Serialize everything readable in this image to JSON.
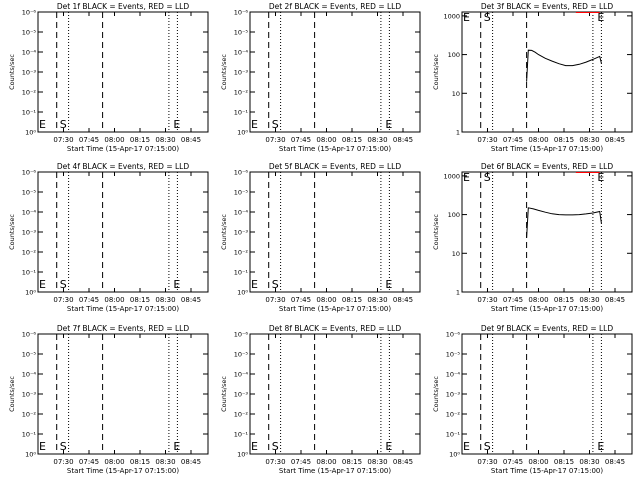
{
  "chart_data": [
    {
      "type": "line",
      "title": "Det 1f BLACK = Events, RED = LLD",
      "xlabel": "Start Time (15-Apr-17 07:15:00)",
      "ylabel": "Counts/sec",
      "x_tick_labels": [
        "07:30",
        "07:45",
        "08:00",
        "08:15",
        "08:30",
        "08:45"
      ],
      "y_scale": "log",
      "y_tick_labels": [
        "10⁰",
        "10⁻¹",
        "10⁻²",
        "10⁻³",
        "10⁻⁴",
        "10⁻⁵",
        "10⁻⁶"
      ],
      "markers": {
        "start": "S",
        "end": "E"
      },
      "series": []
    },
    {
      "type": "line",
      "title": "Det 2f BLACK = Events, RED = LLD",
      "xlabel": "Start Time (15-Apr-17 07:15:00)",
      "ylabel": "Counts/sec",
      "x_tick_labels": [
        "07:30",
        "07:45",
        "08:00",
        "08:15",
        "08:30",
        "08:45"
      ],
      "y_scale": "log",
      "y_tick_labels": [
        "10⁰",
        "10⁻¹",
        "10⁻²",
        "10⁻³",
        "10⁻⁴",
        "10⁻⁵",
        "10⁻⁶"
      ],
      "markers": {
        "start": "S",
        "end": "E"
      },
      "series": []
    },
    {
      "type": "line",
      "title": "Det 3f BLACK = Events, RED = LLD",
      "xlabel": "Start Time (15-Apr-17 07:15:00)",
      "ylabel": "Counts/sec",
      "x_tick_labels": [
        "07:30",
        "07:45",
        "08:00",
        "08:15",
        "08:30",
        "08:45"
      ],
      "y_scale": "log",
      "y_tick_labels": [
        "1",
        "10",
        "100",
        "1000"
      ],
      "markers": {
        "start": "S",
        "end": "E"
      },
      "series": [
        {
          "color": "#000000",
          "x": [
            "07:53",
            "07:54",
            "07:56",
            "07:58",
            "08:00",
            "08:04",
            "08:08",
            "08:12",
            "08:16",
            "08:20",
            "08:24",
            "08:28",
            "08:32",
            "08:36",
            "08:37"
          ],
          "values": [
            20,
            130,
            128,
            115,
            100,
            80,
            68,
            58,
            52,
            52,
            56,
            64,
            75,
            90,
            60
          ]
        }
      ]
    },
    {
      "type": "line",
      "title": "Det 4f BLACK = Events, RED = LLD",
      "xlabel": "Start Time (15-Apr-17 07:15:00)",
      "ylabel": "Counts/sec",
      "x_tick_labels": [
        "07:30",
        "07:45",
        "08:00",
        "08:15",
        "08:30",
        "08:45"
      ],
      "y_scale": "log",
      "y_tick_labels": [
        "10⁰",
        "10⁻¹",
        "10⁻²",
        "10⁻³",
        "10⁻⁴",
        "10⁻⁵",
        "10⁻⁶"
      ],
      "markers": {
        "start": "S",
        "end": "E"
      },
      "series": []
    },
    {
      "type": "line",
      "title": "Det 5f BLACK = Events, RED = LLD",
      "xlabel": "Start Time (15-Apr-17 07:15:00)",
      "ylabel": "Counts/sec",
      "x_tick_labels": [
        "07:30",
        "07:45",
        "08:00",
        "08:15",
        "08:30",
        "08:45"
      ],
      "y_scale": "log",
      "y_tick_labels": [
        "10⁰",
        "10⁻¹",
        "10⁻²",
        "10⁻³",
        "10⁻⁴",
        "10⁻⁵",
        "10⁻⁶"
      ],
      "markers": {
        "start": "S",
        "end": "E"
      },
      "series": []
    },
    {
      "type": "line",
      "title": "Det 6f BLACK = Events, RED = LLD",
      "xlabel": "Start Time (15-Apr-17 07:15:00)",
      "ylabel": "Counts/sec",
      "x_tick_labels": [
        "07:30",
        "07:45",
        "08:00",
        "08:15",
        "08:30",
        "08:45"
      ],
      "y_scale": "log",
      "y_tick_labels": [
        "1",
        "10",
        "100",
        "1000"
      ],
      "markers": {
        "start": "S",
        "end": "E"
      },
      "series": [
        {
          "color": "#000000",
          "x": [
            "07:53",
            "07:54",
            "07:57",
            "08:00",
            "08:04",
            "08:08",
            "08:12",
            "08:16",
            "08:20",
            "08:24",
            "08:28",
            "08:32",
            "08:36",
            "08:37"
          ],
          "values": [
            25,
            150,
            140,
            128,
            115,
            105,
            100,
            98,
            98,
            100,
            104,
            110,
            120,
            60
          ]
        }
      ]
    },
    {
      "type": "line",
      "title": "Det 7f BLACK = Events, RED = LLD",
      "xlabel": "Start Time (15-Apr-17 07:15:00)",
      "ylabel": "Counts/sec",
      "x_tick_labels": [
        "07:30",
        "07:45",
        "08:00",
        "08:15",
        "08:30",
        "08:45"
      ],
      "y_scale": "log",
      "y_tick_labels": [
        "10⁰",
        "10⁻¹",
        "10⁻²",
        "10⁻³",
        "10⁻⁴",
        "10⁻⁵",
        "10⁻⁶"
      ],
      "markers": {
        "start": "S",
        "end": "E"
      },
      "series": []
    },
    {
      "type": "line",
      "title": "Det 8f BLACK = Events, RED = LLD",
      "xlabel": "Start Time (15-Apr-17 07:15:00)",
      "ylabel": "Counts/sec",
      "x_tick_labels": [
        "07:30",
        "07:45",
        "08:00",
        "08:15",
        "08:30",
        "08:45"
      ],
      "y_scale": "log",
      "y_tick_labels": [
        "10⁰",
        "10⁻¹",
        "10⁻²",
        "10⁻³",
        "10⁻⁴",
        "10⁻⁵",
        "10⁻⁶"
      ],
      "markers": {
        "start": "S",
        "end": "E"
      },
      "series": []
    },
    {
      "type": "line",
      "title": "Det 9f BLACK = Events, RED = LLD",
      "xlabel": "Start Time (15-Apr-17 07:15:00)",
      "ylabel": "Counts/sec",
      "x_tick_labels": [
        "07:30",
        "07:45",
        "08:00",
        "08:15",
        "08:30",
        "08:45"
      ],
      "y_scale": "log",
      "y_tick_labels": [
        "10⁰",
        "10⁻¹",
        "10⁻²",
        "10⁻³",
        "10⁻⁴",
        "10⁻⁵",
        "10⁻⁶"
      ],
      "markers": {
        "start": "S",
        "end": "E"
      },
      "series": []
    }
  ]
}
